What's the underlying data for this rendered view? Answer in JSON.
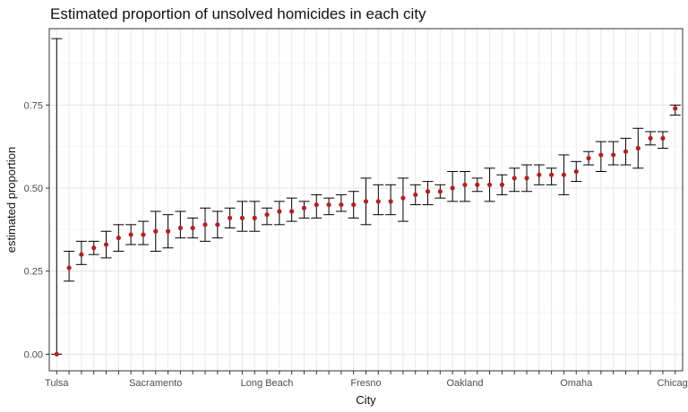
{
  "chart_data": {
    "type": "scatter",
    "title": "Estimated proportion of unsolved homicides in each city",
    "xlabel": "City",
    "ylabel": "estimated proportion",
    "ylim": [
      -0.05,
      0.98
    ],
    "yticks": [
      0.0,
      0.25,
      0.5,
      0.75
    ],
    "ytick_labels": [
      "0.00",
      "0.25",
      "0.50",
      "0.75"
    ],
    "grid": true,
    "x_tick_labels_visible": [
      "Tulsa",
      "Sacramento",
      "Long Beach",
      "Fresno",
      "Oakland",
      "Omaha",
      "Chicago"
    ],
    "point_color": "#b22222",
    "errorbar_color": "#000000",
    "series": [
      {
        "values": [
          0.0,
          0.26,
          0.3,
          0.32,
          0.33,
          0.35,
          0.36,
          0.36,
          0.37,
          0.37,
          0.38,
          0.38,
          0.39,
          0.39,
          0.41,
          0.41,
          0.41,
          0.42,
          0.43,
          0.43,
          0.44,
          0.45,
          0.45,
          0.45,
          0.45,
          0.46,
          0.46,
          0.46,
          0.47,
          0.48,
          0.49,
          0.49,
          0.5,
          0.51,
          0.51,
          0.51,
          0.51,
          0.53,
          0.53,
          0.54,
          0.54,
          0.54,
          0.55,
          0.59,
          0.6,
          0.6,
          0.61,
          0.62,
          0.65,
          0.65,
          0.74
        ],
        "lower": [
          0.0,
          0.22,
          0.27,
          0.3,
          0.29,
          0.31,
          0.33,
          0.33,
          0.31,
          0.32,
          0.35,
          0.35,
          0.34,
          0.35,
          0.38,
          0.37,
          0.37,
          0.39,
          0.39,
          0.4,
          0.41,
          0.41,
          0.42,
          0.43,
          0.41,
          0.39,
          0.42,
          0.42,
          0.4,
          0.45,
          0.45,
          0.47,
          0.46,
          0.46,
          0.49,
          0.46,
          0.48,
          0.49,
          0.49,
          0.51,
          0.51,
          0.48,
          0.52,
          0.57,
          0.55,
          0.57,
          0.57,
          0.56,
          0.63,
          0.62,
          0.72
        ],
        "upper": [
          0.95,
          0.31,
          0.34,
          0.34,
          0.37,
          0.39,
          0.39,
          0.4,
          0.43,
          0.42,
          0.43,
          0.41,
          0.44,
          0.43,
          0.44,
          0.46,
          0.46,
          0.44,
          0.46,
          0.47,
          0.46,
          0.48,
          0.47,
          0.48,
          0.49,
          0.53,
          0.51,
          0.51,
          0.53,
          0.51,
          0.52,
          0.51,
          0.55,
          0.55,
          0.53,
          0.56,
          0.54,
          0.56,
          0.57,
          0.57,
          0.56,
          0.6,
          0.58,
          0.61,
          0.64,
          0.64,
          0.65,
          0.68,
          0.67,
          0.67,
          0.75
        ]
      }
    ]
  }
}
